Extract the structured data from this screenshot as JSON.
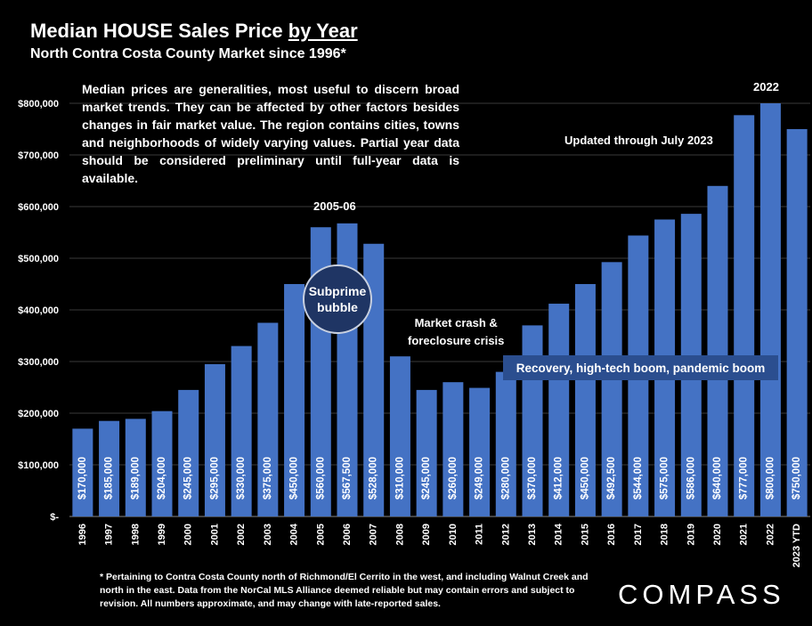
{
  "title": {
    "prefix": "Median HOUSE Sales Price ",
    "underlined": "by Year"
  },
  "subtitle": "North Contra Costa County Market since 1996*",
  "note": "Median prices are generalities, most useful to discern broad market trends. They can be affected by other factors besides changes in fair market value. The region contains cities, towns and neighborhoods of widely varying values. Partial year data should be considered preliminary until full-year data is available.",
  "annotations": {
    "updated": "Updated through July 2023",
    "peak_2005": "2005-06",
    "peak_2022": "2022",
    "bubble": "Subprime bubble",
    "crash_line1": "Market crash &",
    "crash_line2": "foreclosure crisis",
    "recovery": "Recovery, high-tech boom, pandemic  boom"
  },
  "footnote": "* Pertaining to Contra Costa County north of Richmond/El Cerrito in the west, and including Walnut Creek and north in the east. Data from the NorCal MLS Alliance deemed reliable but may contain errors and subject to revision. All numbers approximate, and may change with late-reported sales.",
  "logo": "COMPASS",
  "colors": {
    "background": "#000000",
    "bar": "#4472c4",
    "grid": "#3a3a3a",
    "bubble_fill": "#1f3564",
    "recovery_box": "#2b4e8f"
  },
  "chart_data": {
    "type": "bar",
    "categories": [
      "1996",
      "1997",
      "1998",
      "1999",
      "2000",
      "2001",
      "2002",
      "2003",
      "2004",
      "2005",
      "2006",
      "2007",
      "2008",
      "2009",
      "2010",
      "2011",
      "2012",
      "2013",
      "2014",
      "2015",
      "2016",
      "2017",
      "2018",
      "2019",
      "2020",
      "2021",
      "2022",
      "2023 YTD"
    ],
    "values": [
      170000,
      185000,
      189000,
      204000,
      245000,
      295000,
      330000,
      375000,
      450000,
      560000,
      567500,
      528000,
      310000,
      245000,
      260000,
      249000,
      280000,
      370000,
      412000,
      450000,
      492500,
      544000,
      575000,
      586000,
      640000,
      777000,
      800000,
      750000
    ],
    "data_labels": [
      "$170,000",
      "$185,000",
      "$189,000",
      "$204,000",
      "$245,000",
      "$295,000",
      "$330,000",
      "$375,000",
      "$450,000",
      "$560,000",
      "$567,500",
      "$528,000",
      "$310,000",
      "$245,000",
      "$260,000",
      "$249,000",
      "$280,000",
      "$370,000",
      "$412,000",
      "$450,000",
      "$492,500",
      "$544,000",
      "$575,000",
      "$586,000",
      "$640,000",
      "$777,000",
      "$800,000",
      "$750,000"
    ],
    "y_ticks": [
      0,
      100000,
      200000,
      300000,
      400000,
      500000,
      600000,
      700000,
      800000
    ],
    "y_tick_labels": [
      "$-",
      "$100,000",
      "$200,000",
      "$300,000",
      "$400,000",
      "$500,000",
      "$600,000",
      "$700,000",
      "$800,000"
    ],
    "ylim": [
      0,
      800000
    ],
    "grid": true,
    "legend": "none"
  }
}
